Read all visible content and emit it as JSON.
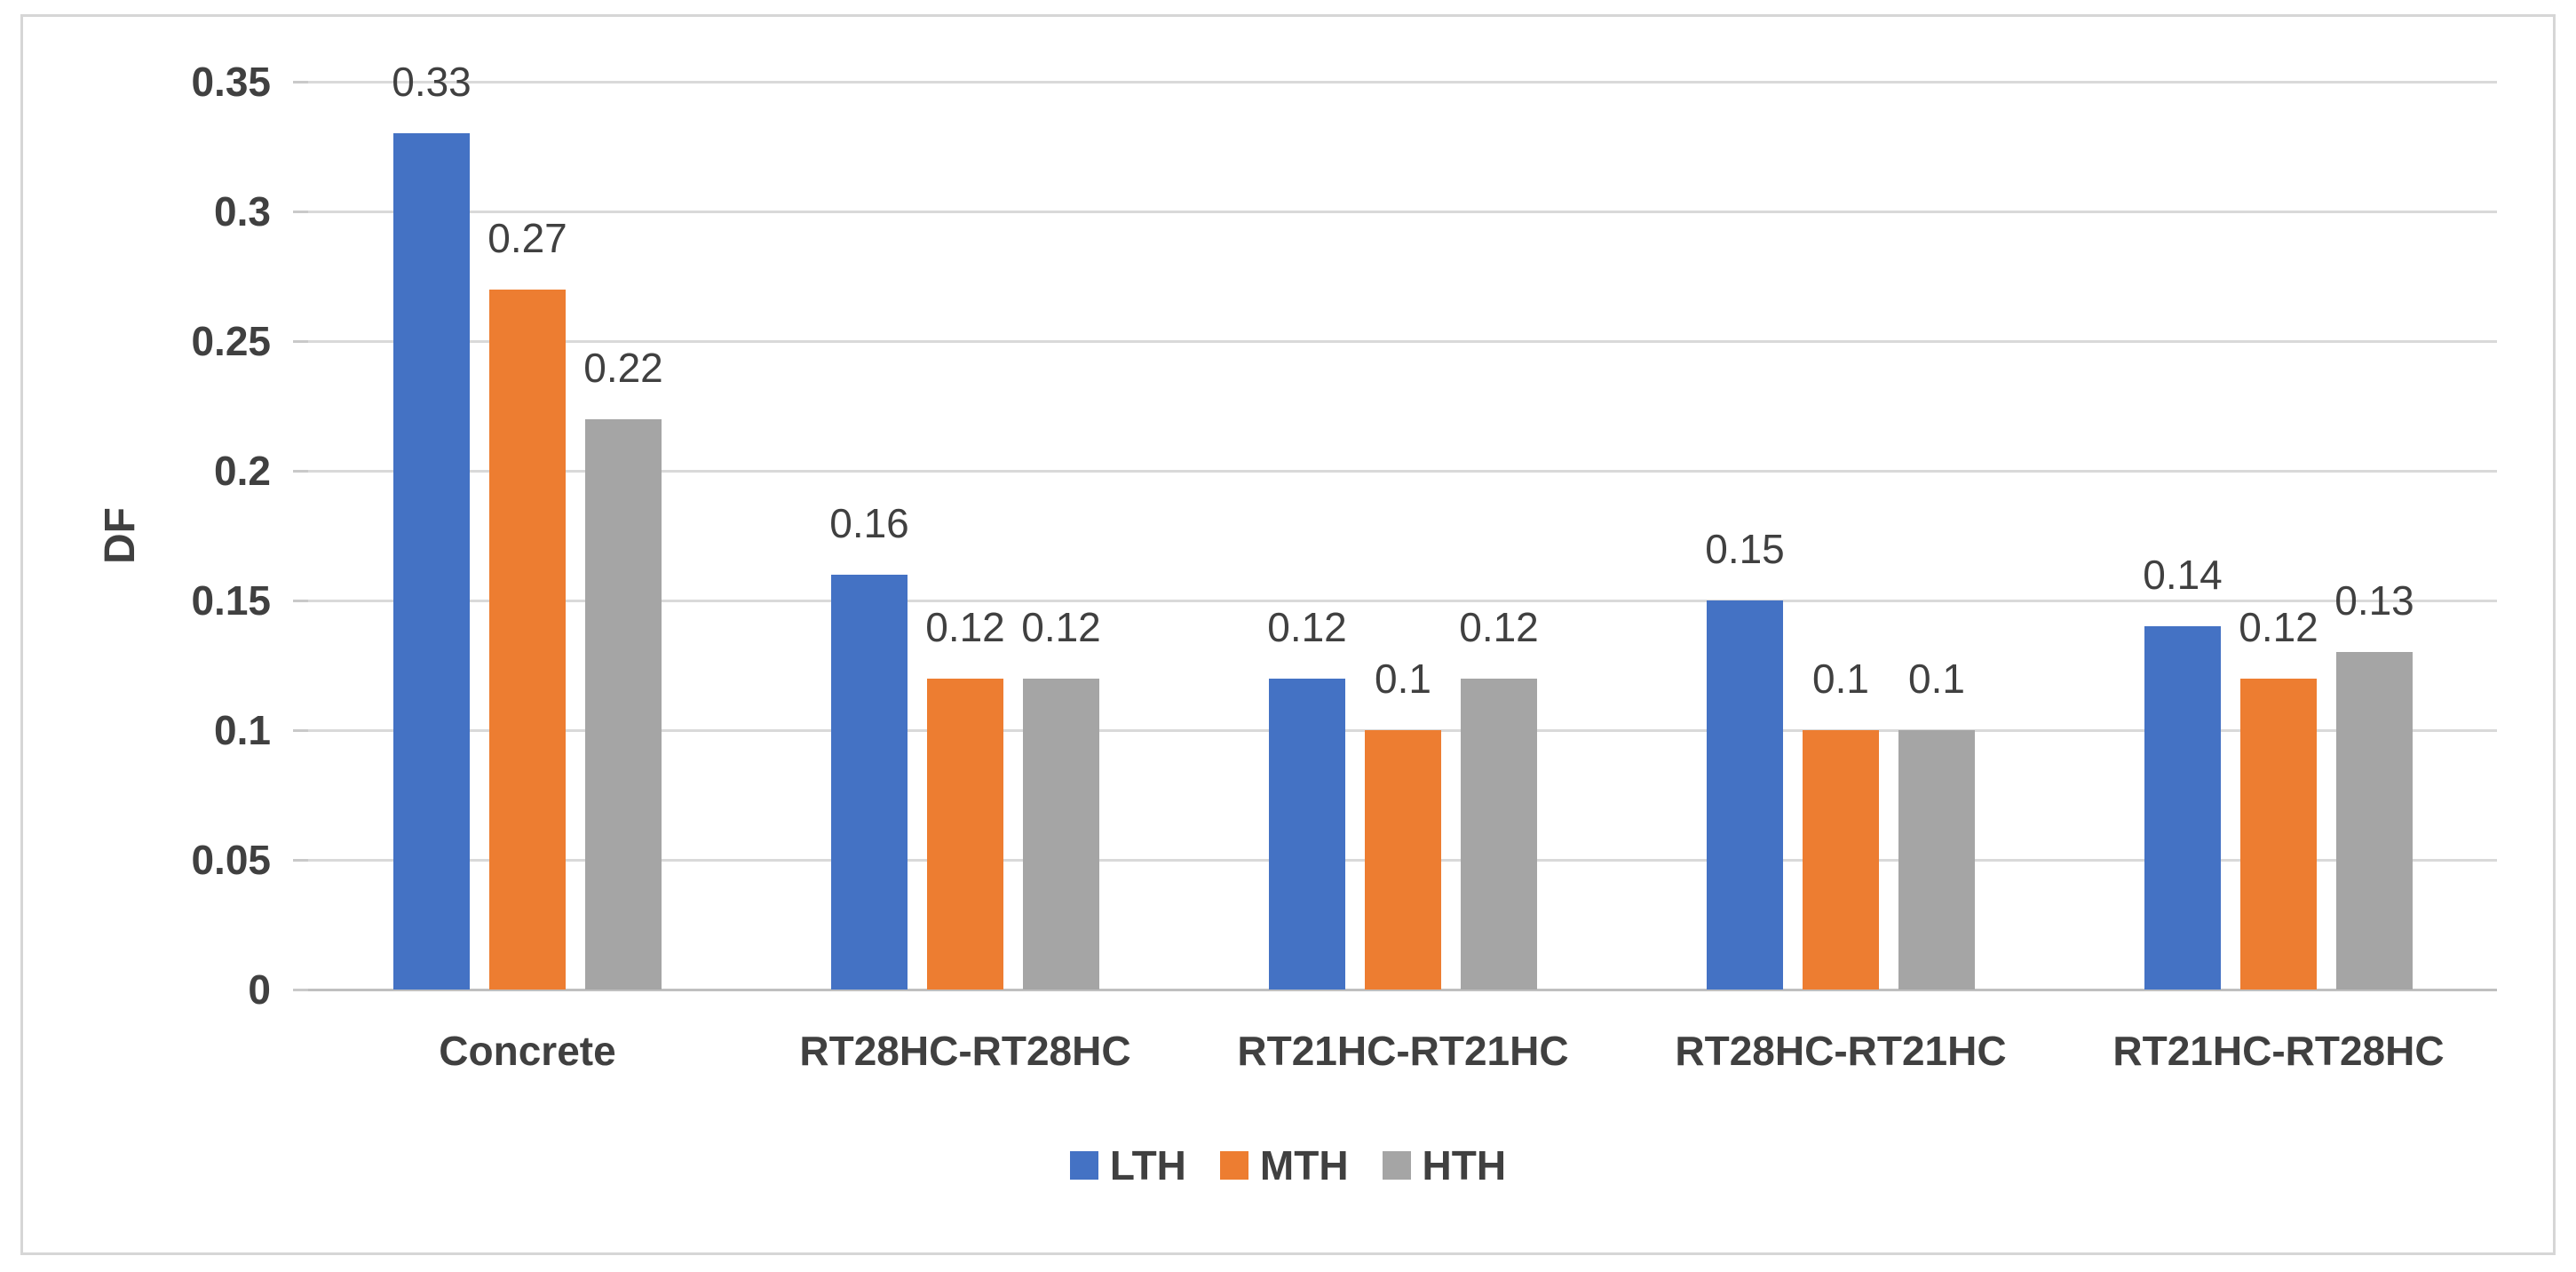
{
  "chart_data": {
    "type": "bar",
    "title": "",
    "xlabel": "",
    "ylabel": "DF",
    "categories": [
      "Concrete",
      "RT28HC-RT28HC",
      "RT21HC-RT21HC",
      "RT28HC-RT21HC",
      "RT21HC-RT28HC"
    ],
    "series": [
      {
        "name": "LTH",
        "color": "#4472C4",
        "values": [
          0.33,
          0.16,
          0.12,
          0.15,
          0.14
        ]
      },
      {
        "name": "MTH",
        "color": "#ED7D31",
        "values": [
          0.27,
          0.12,
          0.1,
          0.1,
          0.12
        ]
      },
      {
        "name": "HTH",
        "color": "#A5A5A5",
        "values": [
          0.22,
          0.12,
          0.12,
          0.1,
          0.13
        ]
      }
    ],
    "data_labels": [
      [
        "0.33",
        "0.16",
        "0.12",
        "0.15",
        "0.14"
      ],
      [
        "0.27",
        "0.12",
        "0.1",
        "0.1",
        "0.12"
      ],
      [
        "0.22",
        "0.12",
        "0.12",
        "0.1",
        "0.13"
      ]
    ],
    "yticks": [
      "0.35",
      "0.3",
      "0.25",
      "0.2",
      "0.15",
      "0.1",
      "0.05",
      "0"
    ],
    "ytick_values": [
      0.35,
      0.3,
      0.25,
      0.2,
      0.15,
      0.1,
      0.05,
      0
    ],
    "ylim": [
      0,
      0.35
    ],
    "grid": true,
    "legend_position": "bottom",
    "legend": [
      "LTH",
      "MTH",
      "HTH"
    ]
  },
  "colors": {
    "text": "#404040",
    "gridline": "#d9d9d9",
    "axis_line": "#bfbfbf",
    "frame_border": "#d6d6d6",
    "background": "#ffffff"
  }
}
